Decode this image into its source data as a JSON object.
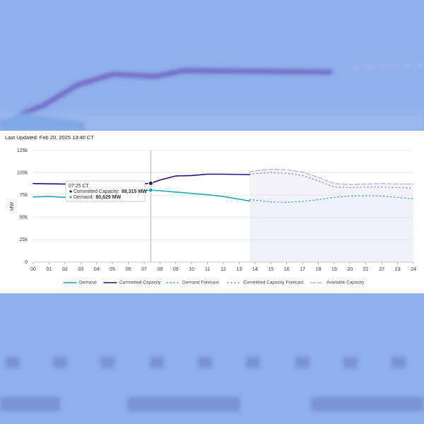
{
  "last_updated": "Last Updated: Feb 20, 2025 13:40 CT",
  "chart_data": {
    "type": "line",
    "ylabel": "MW",
    "xlim": [
      0,
      24
    ],
    "xticks": [
      {
        "value": 0,
        "label": "00"
      },
      {
        "value": 1,
        "label": "01"
      },
      {
        "value": 2,
        "label": "02"
      },
      {
        "value": 3,
        "label": "03"
      },
      {
        "value": 4,
        "label": "04"
      },
      {
        "value": 5,
        "label": "05"
      },
      {
        "value": 6,
        "label": "06"
      },
      {
        "value": 7,
        "label": "07"
      },
      {
        "value": 8,
        "label": "08"
      },
      {
        "value": 9,
        "label": "09"
      },
      {
        "value": 10,
        "label": "10"
      },
      {
        "value": 11,
        "label": "11"
      },
      {
        "value": 12,
        "label": "12"
      },
      {
        "value": 13,
        "label": "13"
      },
      {
        "value": 14,
        "label": "14"
      },
      {
        "value": 15,
        "label": "15"
      },
      {
        "value": 16,
        "label": "16"
      },
      {
        "value": 17,
        "label": "17"
      },
      {
        "value": 18,
        "label": "18"
      },
      {
        "value": 19,
        "label": "19"
      },
      {
        "value": 20,
        "label": "20"
      },
      {
        "value": 21,
        "label": "21"
      },
      {
        "value": 22,
        "label": "22"
      },
      {
        "value": 23,
        "label": "23"
      },
      {
        "value": 24,
        "label": "24"
      }
    ],
    "ylim": [
      0,
      125000
    ],
    "yticks": [
      0,
      {
        "value": 25000,
        "label": "25k"
      },
      {
        "value": 50000,
        "label": "50k"
      },
      {
        "value": 75000,
        "label": "75k"
      },
      {
        "value": 100000,
        "label": "100k"
      },
      {
        "value": 125000,
        "label": "125k"
      }
    ],
    "grid": true,
    "series": [
      {
        "name": "Demand",
        "color": "#1ea8b6",
        "style": "solid",
        "x": [
          0,
          1,
          2,
          3,
          4,
          5,
          6,
          7,
          7.42,
          8,
          9,
          10,
          11,
          12,
          13,
          13.67
        ],
        "values": [
          73000,
          73500,
          72500,
          73000,
          74500,
          76500,
          78500,
          80300,
          80629,
          80000,
          78500,
          77000,
          75500,
          73500,
          70500,
          68500
        ]
      },
      {
        "name": "Committed Capacity",
        "color": "#2c0b7c",
        "style": "solid",
        "x": [
          0,
          1,
          2,
          3,
          4,
          5,
          6,
          7,
          7.42,
          8,
          9,
          10,
          11,
          12,
          13,
          13.67
        ],
        "values": [
          88000,
          87800,
          87500,
          87300,
          87200,
          87000,
          87300,
          87800,
          88315,
          92000,
          96500,
          97000,
          98500,
          98500,
          98200,
          98000
        ]
      },
      {
        "name": "Demand Forecast",
        "color": "#1ea8b6",
        "style": "dotted",
        "fill": "#dff1f6",
        "x": [
          13.67,
          14,
          15,
          16,
          17,
          18,
          19,
          20,
          21,
          22,
          23,
          24
        ],
        "values": [
          70000,
          69500,
          67500,
          67000,
          68000,
          70000,
          72500,
          74000,
          74500,
          74000,
          72500,
          71000
        ]
      },
      {
        "name": "Committed Capacity Forecast",
        "color": "#8a7fca",
        "style": "dotted",
        "x": [
          13.67,
          14,
          15,
          16,
          17,
          18,
          19,
          20,
          21,
          22,
          23,
          24
        ],
        "values": [
          98500,
          99000,
          100500,
          99500,
          97000,
          91000,
          84000,
          83500,
          84000,
          84000,
          83500,
          83000
        ]
      },
      {
        "name": "Available Capacity",
        "color": "#b9b1de",
        "style": "dashed",
        "fill": "#f1eff9",
        "x": [
          13.67,
          14,
          15,
          16,
          17,
          18,
          19,
          20,
          21,
          22,
          23,
          24
        ],
        "values": [
          101000,
          102500,
          104000,
          103500,
          101000,
          95000,
          88000,
          87000,
          87500,
          88000,
          87500,
          87500
        ]
      }
    ],
    "tooltip": {
      "time": "07:25 CT",
      "x_index": 8,
      "items": [
        {
          "series": 1,
          "label": "Committed Capacity:",
          "value": "88,315 MW"
        },
        {
          "series": 0,
          "label": "Demand:",
          "value": "80,629 MW"
        }
      ]
    }
  }
}
